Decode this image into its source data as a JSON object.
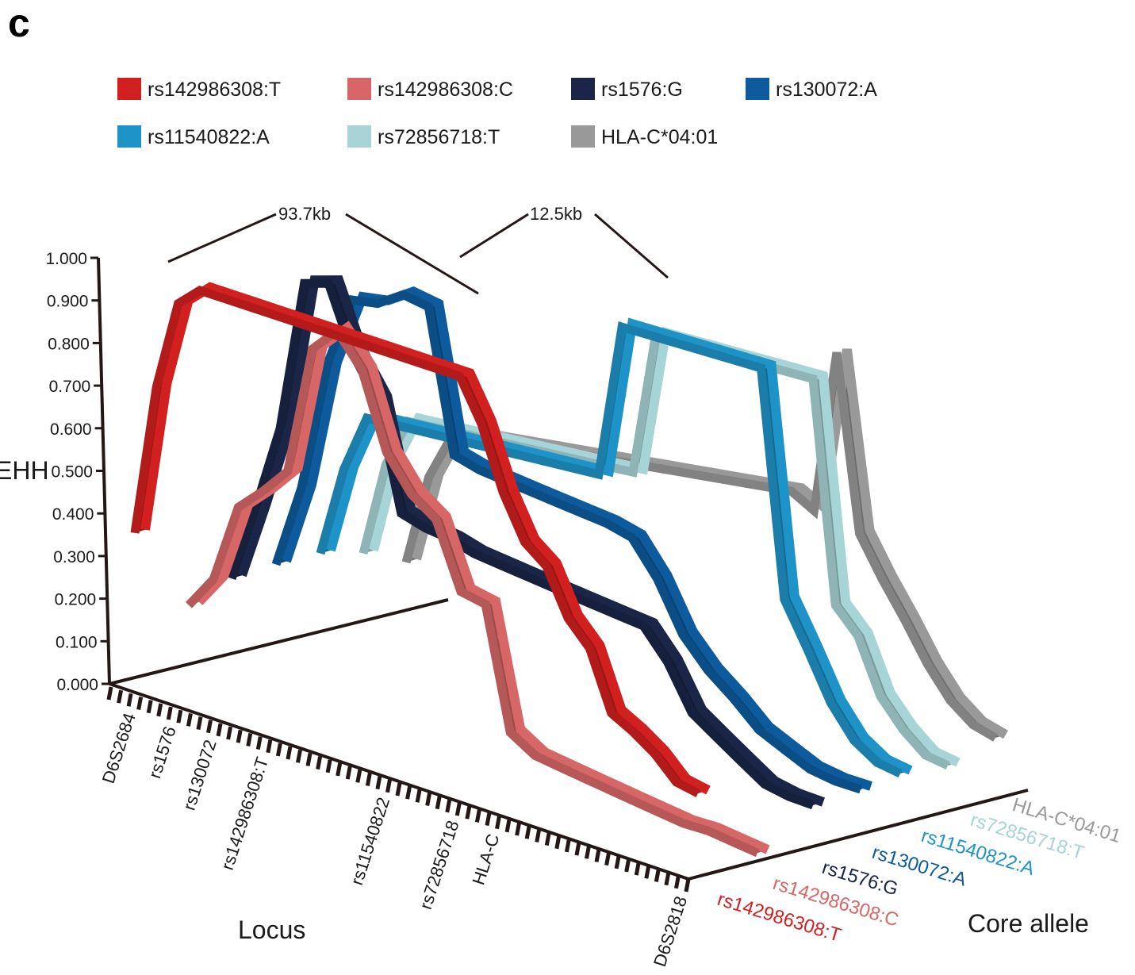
{
  "panel_label": "c",
  "chart_data": {
    "type": "line",
    "ylabel": "EHH",
    "xlabel": "Locus",
    "zlabel": "Core allele",
    "ylim": [
      0,
      1
    ],
    "y_ticks": [
      "0.000",
      "0.100",
      "0.200",
      "0.300",
      "0.400",
      "0.500",
      "0.600",
      "0.700",
      "0.800",
      "0.900",
      "1.000"
    ],
    "loci": [
      "D6S2684",
      "rs1576",
      "rs130072",
      "rs142986308:T",
      "rs11540822",
      "rs72856718",
      "HLA-C",
      "D6S2818"
    ],
    "legend": [
      {
        "label": "rs142986308:T",
        "color": "#d21f1f"
      },
      {
        "label": "rs142986308:C",
        "color": "#d76767"
      },
      {
        "label": "rs1576:G",
        "color": "#1a2547"
      },
      {
        "label": "rs130072:A",
        "color": "#0d5b9c"
      },
      {
        "label": "rs11540822:A",
        "color": "#1e93c8"
      },
      {
        "label": "rs72856718:T",
        "color": "#a7d4d6"
      },
      {
        "label": "HLA-C*04:01",
        "color": "#999999"
      }
    ],
    "annotations": [
      "93.7kb",
      "12.5kb"
    ],
    "series": [
      {
        "name": "rs142986308:T",
        "color": "#d21f1f",
        "y": [
          0.36,
          0.73,
          0.95,
          1.0,
          1.0,
          1.0,
          1.0,
          1.0,
          1.0,
          1.0,
          1.0,
          1.0,
          1.0,
          1.0,
          1.0,
          1.0,
          0.89,
          0.72,
          0.6,
          0.55,
          0.42,
          0.35,
          0.18,
          0.14,
          0.09,
          0.02,
          0.0
        ]
      },
      {
        "name": "rs142986308:C",
        "color": "#d76767",
        "y": [
          0.18,
          0.26,
          0.45,
          0.51,
          0.58,
          0.9,
          0.97,
          0.9,
          0.72,
          0.64,
          0.6,
          0.44,
          0.43,
          0.12,
          0.08,
          0.07,
          0.06,
          0.05,
          0.04,
          0.03,
          0.02,
          0.02,
          0.01,
          0.0
        ]
      },
      {
        "name": "rs1576:G",
        "color": "#1a2547",
        "y": [
          0.24,
          0.42,
          0.62,
          0.98,
          1.0,
          0.85,
          0.76,
          0.5,
          0.48,
          0.47,
          0.45,
          0.44,
          0.43,
          0.42,
          0.41,
          0.4,
          0.39,
          0.38,
          0.3,
          0.18,
          0.13,
          0.08,
          0.03,
          0.01,
          0.0
        ]
      },
      {
        "name": "rs130072:A",
        "color": "#0d5b9c",
        "y": [
          0.27,
          0.46,
          0.76,
          0.93,
          0.94,
          0.98,
          0.97,
          0.63,
          0.61,
          0.6,
          0.59,
          0.58,
          0.57,
          0.56,
          0.54,
          0.45,
          0.32,
          0.24,
          0.18,
          0.11,
          0.07,
          0.03,
          0.01,
          0.0
        ]
      },
      {
        "name": "rs11540822:A",
        "color": "#1e93c8",
        "y": [
          0.29,
          0.49,
          0.62,
          0.62,
          0.62,
          0.62,
          0.62,
          0.62,
          0.62,
          0.62,
          0.62,
          0.62,
          0.62,
          1.0,
          1.0,
          1.0,
          1.0,
          1.0,
          1.0,
          1.0,
          0.41,
          0.29,
          0.16,
          0.07,
          0.02,
          0.0
        ]
      },
      {
        "name": "rs72856718:T",
        "color": "#a7d4d6",
        "y": [
          0.29,
          0.5,
          0.61,
          0.61,
          0.61,
          0.61,
          0.61,
          0.61,
          0.61,
          0.61,
          0.61,
          0.61,
          0.61,
          0.96,
          0.96,
          0.96,
          0.96,
          0.96,
          0.96,
          0.96,
          0.96,
          0.38,
          0.31,
          0.16,
          0.08,
          0.02,
          0.0
        ]
      },
      {
        "name": "HLA-C*04:01",
        "color": "#999999",
        "y": [
          0.27,
          0.47,
          0.57,
          0.58,
          0.58,
          0.58,
          0.58,
          0.58,
          0.58,
          0.58,
          0.58,
          0.58,
          0.58,
          0.58,
          0.58,
          0.58,
          0.58,
          0.58,
          0.54,
          0.96,
          0.5,
          0.39,
          0.29,
          0.18,
          0.09,
          0.03,
          0.0
        ]
      }
    ]
  }
}
